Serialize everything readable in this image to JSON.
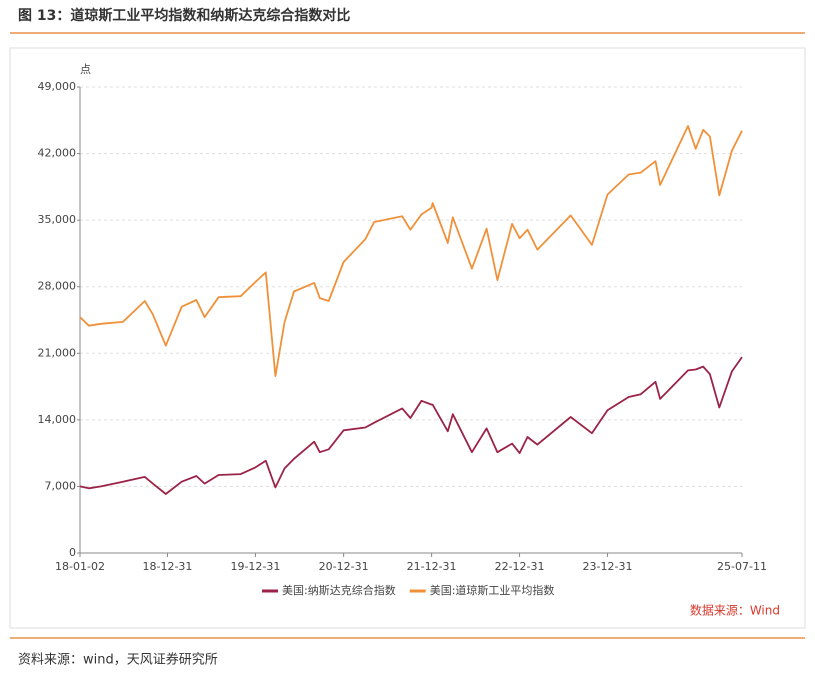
{
  "title": "图 13：道琼斯工业平均指数和纳斯达克综合指数对比",
  "footer": "资料来源：wind，天风证券研究所",
  "chart_data": {
    "type": "line",
    "y_label": "点",
    "source": "数据来源：Wind",
    "x": [
      "18-01-02",
      "18-02-08",
      "18-03-30",
      "18-06-29",
      "18-09-28",
      "18-10-31",
      "18-12-24",
      "19-02-28",
      "19-04-30",
      "19-06-03",
      "19-07-31",
      "19-10-31",
      "19-12-31",
      "20-02-12",
      "20-03-23",
      "20-04-30",
      "20-06-08",
      "20-08-31",
      "20-09-23",
      "20-10-30",
      "20-12-31",
      "21-03-31",
      "21-05-07",
      "21-08-31",
      "21-10-04",
      "21-11-19",
      "21-12-31",
      "22-01-04",
      "22-03-08",
      "22-03-29",
      "22-06-16",
      "22-08-16",
      "22-09-30",
      "22-11-30",
      "22-12-31",
      "23-02-02",
      "23-03-15",
      "23-07-31",
      "23-10-27",
      "23-12-31",
      "24-03-28",
      "24-05-17",
      "24-07-17",
      "24-08-05",
      "24-11-29",
      "24-12-31",
      "25-01-31",
      "25-02-28",
      "25-04-08",
      "25-05-30",
      "25-07-11"
    ],
    "series": [
      {
        "name": "美国:纳斯达克综合指数",
        "color": "#9b2348",
        "values": [
          7000,
          6800,
          7000,
          7500,
          8000,
          7300,
          6200,
          7500,
          8100,
          7300,
          8200,
          8300,
          9000,
          9700,
          6900,
          8900,
          9900,
          11700,
          10600,
          10900,
          12900,
          13200,
          13700,
          15200,
          14200,
          16000,
          15600,
          15600,
          12800,
          14600,
          10600,
          13100,
          10600,
          11500,
          10500,
          12200,
          11400,
          14300,
          12600,
          15000,
          16400,
          16700,
          18000,
          16200,
          19200,
          19300,
          19600,
          18800,
          15300,
          19100,
          20600
        ]
      },
      {
        "name": "美国:道琼斯工业平均指数",
        "color": "#f0913a",
        "values": [
          24800,
          23900,
          24100,
          24300,
          26500,
          25100,
          21800,
          25900,
          26600,
          24800,
          26900,
          27000,
          28500,
          29500,
          18600,
          24300,
          27500,
          28400,
          26800,
          26500,
          30600,
          33000,
          34800,
          35400,
          34000,
          35600,
          36300,
          36800,
          32600,
          35300,
          29900,
          34100,
          28700,
          34600,
          33100,
          34000,
          31900,
          35500,
          32400,
          37700,
          39800,
          40000,
          41200,
          38700,
          44900,
          42500,
          44500,
          43800,
          37600,
          42300,
          44400
        ]
      }
    ],
    "xlim": [
      "18-01-02",
      "25-07-11"
    ],
    "xticks": [
      "18-01-02",
      "18-12-31",
      "19-12-31",
      "20-12-31",
      "21-12-31",
      "22-12-31",
      "23-12-31",
      "25-07-11"
    ],
    "ylim": [
      0,
      49000
    ],
    "yticks": [
      0,
      {
        "value": 7000,
        "label": "7,000"
      },
      {
        "value": 14000,
        "label": "14,000"
      },
      {
        "value": 21000,
        "label": "21,000"
      },
      {
        "value": 28000,
        "label": "28,000"
      },
      {
        "value": 35000,
        "label": "35,000"
      },
      {
        "value": 42000,
        "label": "42,000"
      },
      {
        "value": 49000,
        "label": "49,000"
      }
    ],
    "grid": true
  }
}
